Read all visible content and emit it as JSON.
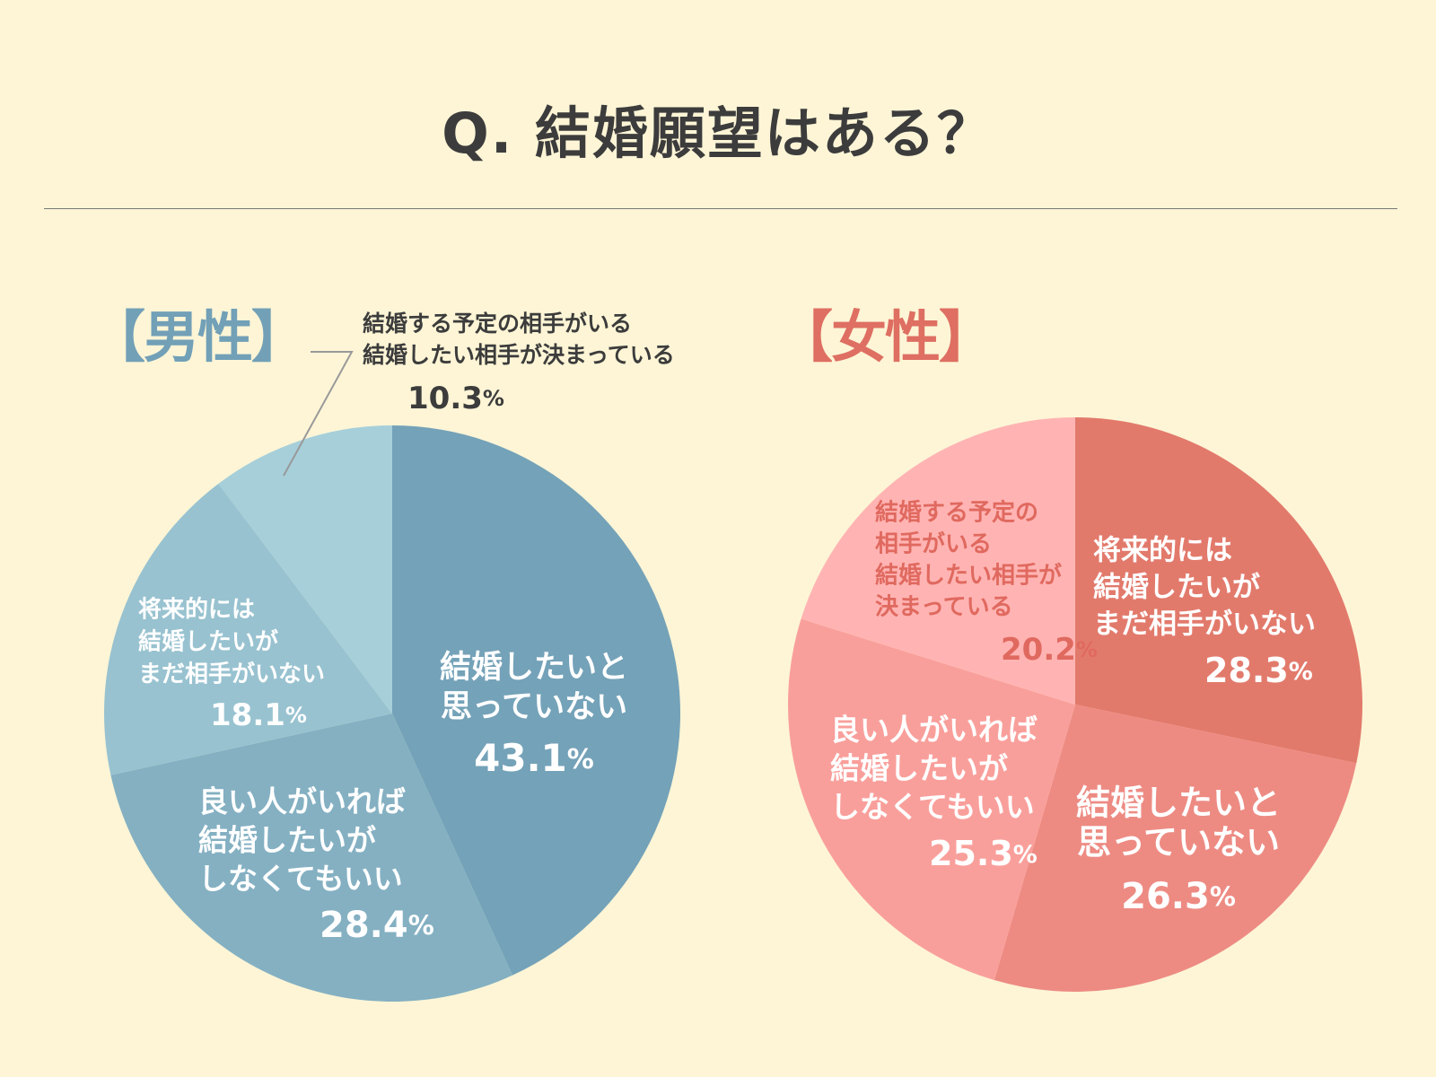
{
  "title": "Q. 結婚願望はある？",
  "chart_data": [
    {
      "type": "pie",
      "title": "【男性】",
      "start_angle_deg": 0,
      "direction": "clockwise",
      "slices": [
        {
          "label": [
            "結婚したいと",
            "思っていない"
          ],
          "value": 43.1,
          "value_text": "43.1",
          "unit": "%",
          "color": "#74a2b8",
          "text_color": "#ffffff"
        },
        {
          "label": [
            "良い人がいれば",
            "結婚したいが",
            "しなくてもいい"
          ],
          "value": 28.4,
          "value_text": "28.4",
          "unit": "%",
          "color": "#84b0c2",
          "text_color": "#ffffff"
        },
        {
          "label": [
            "将来的には",
            "結婚したいが",
            "まだ相手がいない"
          ],
          "value": 18.1,
          "value_text": "18.1",
          "unit": "%",
          "color": "#98c2d0",
          "text_color": "#ffffff"
        },
        {
          "label": [
            "結婚する予定の相手がいる",
            "結婚したい相手が決まっている"
          ],
          "value": 10.3,
          "value_text": "10.3",
          "unit": "%",
          "color": "#a6cfda",
          "text_color": "#3c3c3c",
          "callout": true
        }
      ]
    },
    {
      "type": "pie",
      "title": "【女性】",
      "start_angle_deg": 0,
      "direction": "clockwise",
      "slices": [
        {
          "label": [
            "将来的には",
            "結婚したいが",
            "まだ相手がいない"
          ],
          "value": 28.3,
          "value_text": "28.3",
          "unit": "%",
          "color": "#e27a6c",
          "text_color": "#ffffff"
        },
        {
          "label": [
            "結婚したいと",
            "思っていない"
          ],
          "value": 26.3,
          "value_text": "26.3",
          "unit": "%",
          "color": "#ed8b83",
          "text_color": "#ffffff"
        },
        {
          "label": [
            "良い人がいれば",
            "結婚したいが",
            "しなくてもいい"
          ],
          "value": 25.3,
          "value_text": "25.3",
          "unit": "%",
          "color": "#f99f9b",
          "text_color": "#ffffff"
        },
        {
          "label": [
            "結婚する予定の",
            "相手がいる",
            "結婚したい相手が",
            "決まっている"
          ],
          "value": 20.2,
          "value_text": "20.2",
          "unit": "%",
          "color": "#ffb4b3",
          "text_color": "#e0695f"
        }
      ]
    }
  ]
}
